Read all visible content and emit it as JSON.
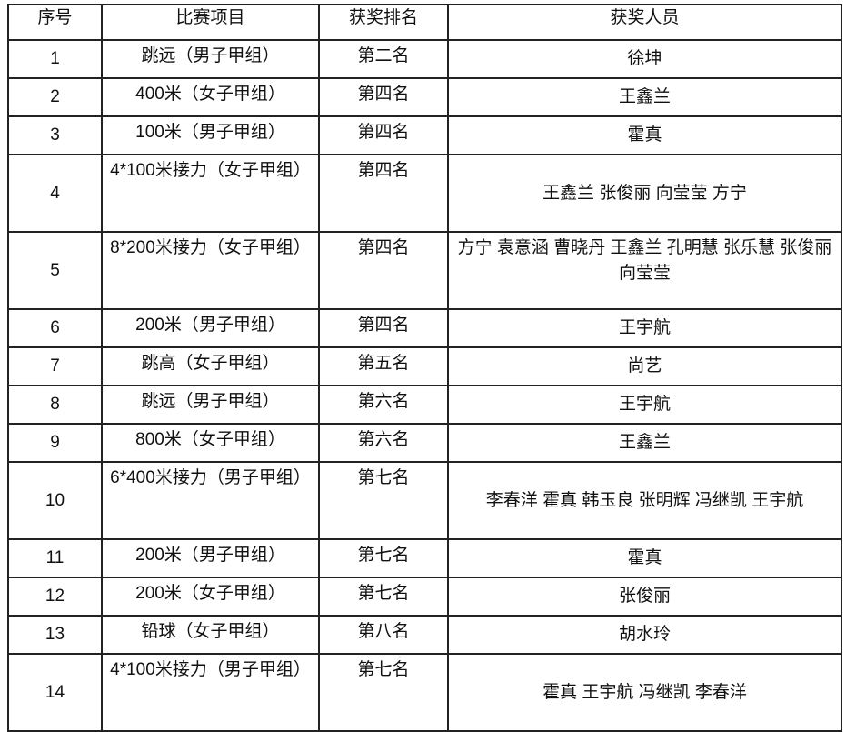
{
  "table": {
    "headers": [
      "序号",
      "比赛项目",
      "获奖排名",
      "获奖人员"
    ],
    "rows": [
      {
        "no": "1",
        "event": "跳远（男子甲组）",
        "rank": "第二名",
        "names": "徐坤"
      },
      {
        "no": "2",
        "event": "400米（女子甲组）",
        "rank": "第四名",
        "names": "王鑫兰"
      },
      {
        "no": "3",
        "event": "100米（男子甲组）",
        "rank": "第四名",
        "names": "霍真"
      },
      {
        "no": "4",
        "event": "4*100米接力（女子甲组）",
        "rank": "第四名",
        "names": "王鑫兰 张俊丽 向莹莹 方宁"
      },
      {
        "no": "5",
        "event": "8*200米接力（女子甲组）",
        "rank": "第四名",
        "names": "方宁 袁意涵 曹晓丹 王鑫兰 孔明慧 张乐慧 张俊丽 向莹莹"
      },
      {
        "no": "6",
        "event": "200米（男子甲组）",
        "rank": "第四名",
        "names": "王宇航"
      },
      {
        "no": "7",
        "event": "跳高（女子甲组）",
        "rank": "第五名",
        "names": "尚艺"
      },
      {
        "no": "8",
        "event": "跳远（男子甲组）",
        "rank": "第六名",
        "names": "王宇航"
      },
      {
        "no": "9",
        "event": "800米（女子甲组）",
        "rank": "第六名",
        "names": "王鑫兰"
      },
      {
        "no": "10",
        "event": "6*400米接力（男子甲组）",
        "rank": "第七名",
        "names": "李春洋 霍真 韩玉良 张明辉 冯继凯 王宇航"
      },
      {
        "no": "11",
        "event": "200米（男子甲组）",
        "rank": "第七名",
        "names": "霍真"
      },
      {
        "no": "12",
        "event": "200米（女子甲组）",
        "rank": "第七名",
        "names": "张俊丽"
      },
      {
        "no": "13",
        "event": "铅球（女子甲组）",
        "rank": "第八名",
        "names": "胡水玲"
      },
      {
        "no": "14",
        "event": "4*100米接力（男子甲组）",
        "rank": "第七名",
        "names": "霍真 王宇航 冯继凯 李春洋"
      }
    ]
  }
}
